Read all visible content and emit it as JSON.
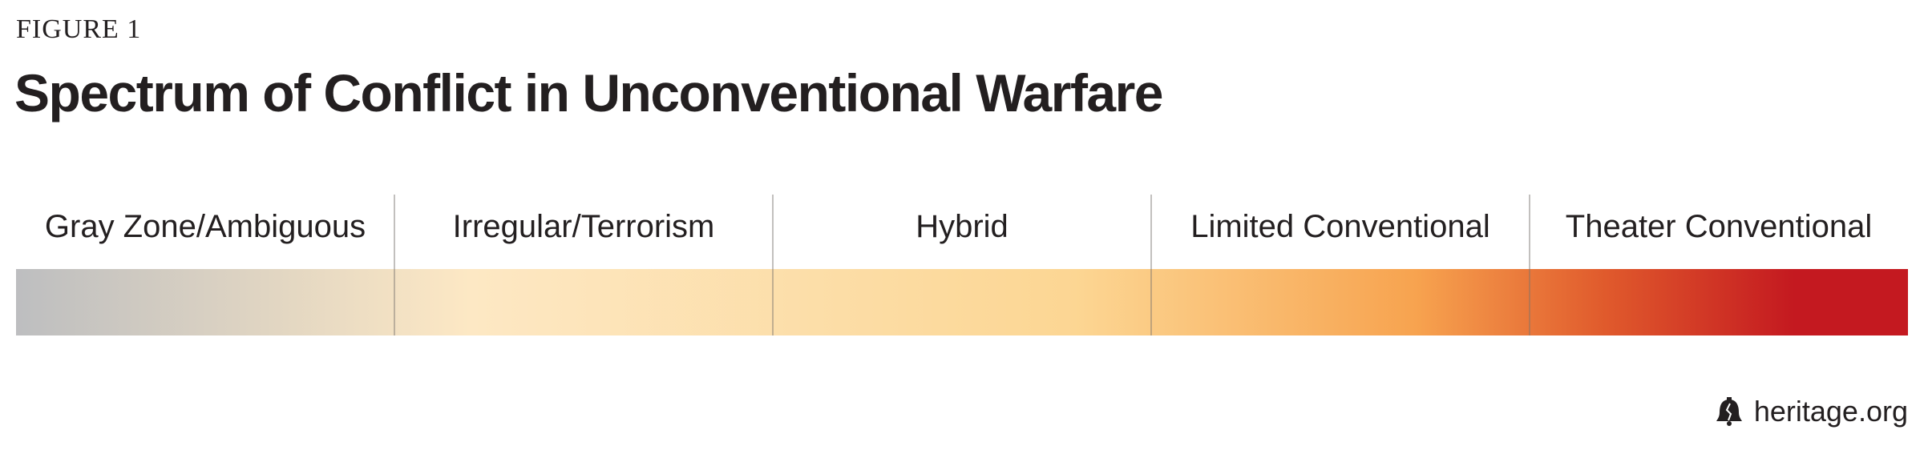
{
  "figure_label": "FIGURE 1",
  "title": "Spectrum of Conflict in Unconventional Warfare",
  "spectrum": {
    "segments": [
      {
        "label": "Gray Zone/Ambiguous"
      },
      {
        "label": "Irregular/Terrorism"
      },
      {
        "label": "Hybrid"
      },
      {
        "label": "Limited Conventional"
      },
      {
        "label": "Theater Conventional"
      }
    ],
    "colors": {
      "start": "#bdbec0",
      "light": "#fde8c4",
      "mid": "#fcd693",
      "orange": "#f7a34f",
      "red": "#c41920"
    }
  },
  "brand": {
    "icon": "liberty-bell-icon",
    "text": "heritage.org"
  }
}
